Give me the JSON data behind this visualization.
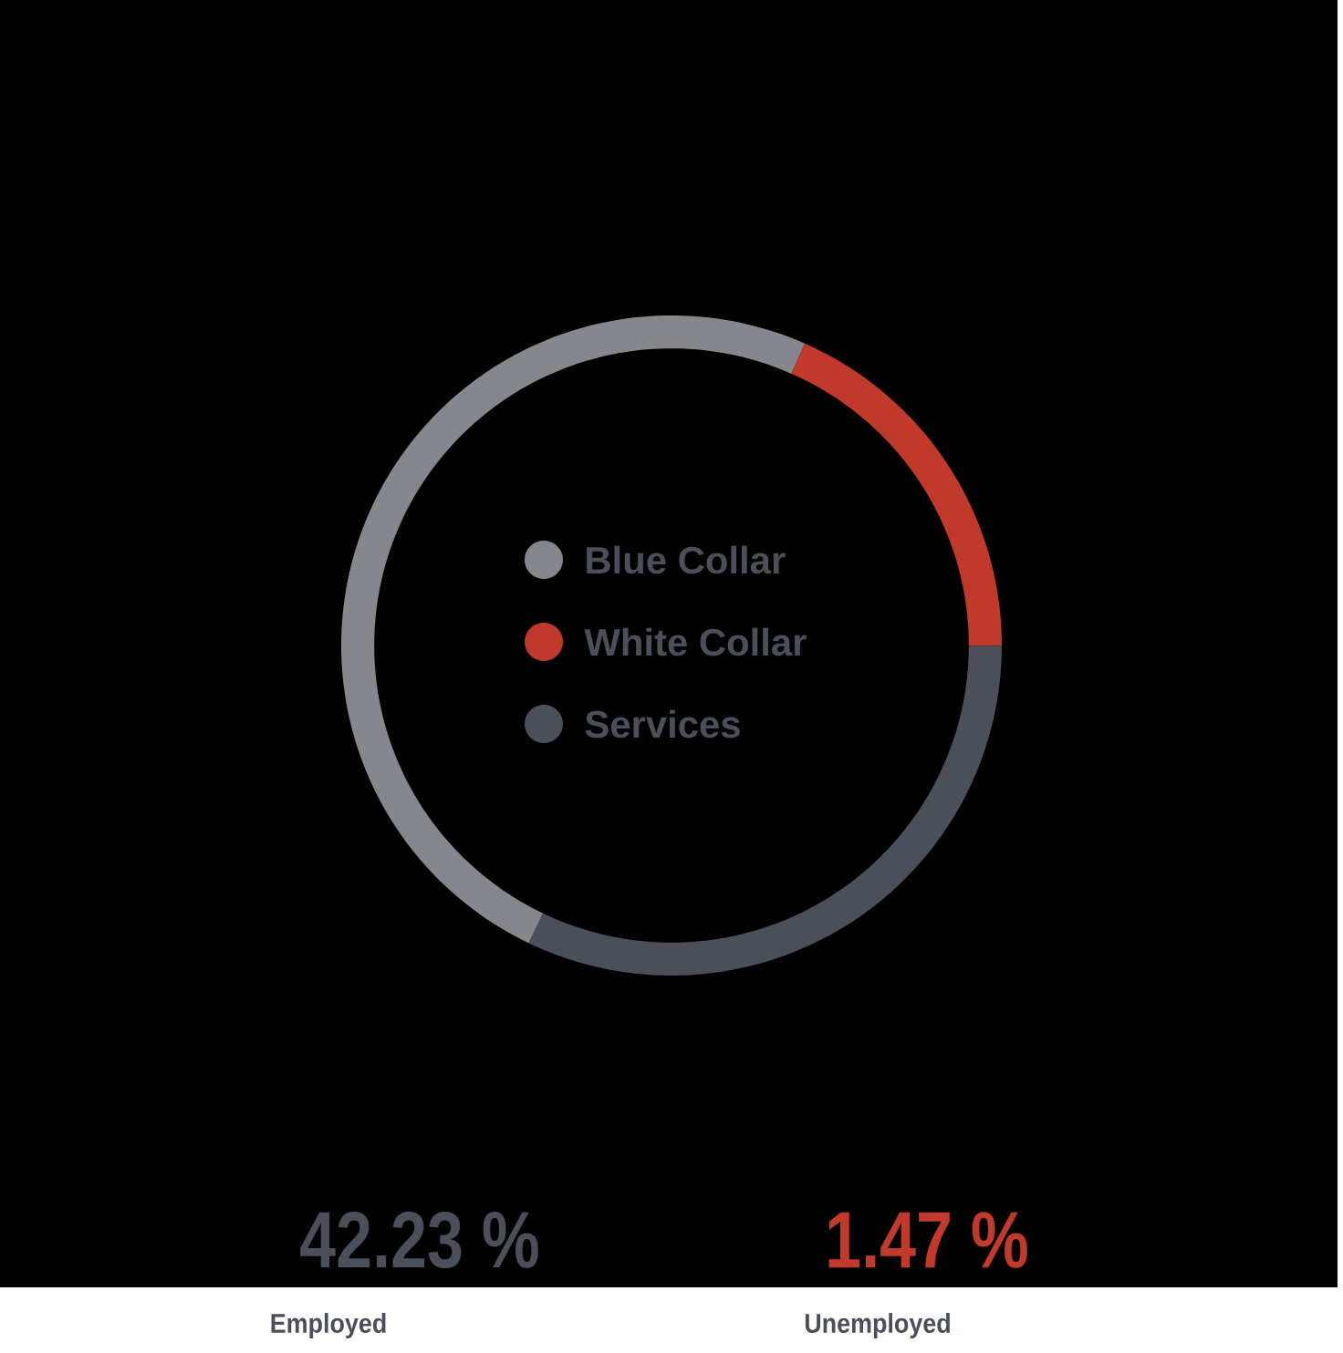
{
  "chart_data": {
    "type": "donut",
    "categories": [
      "Blue Collar",
      "White Collar",
      "Services"
    ],
    "values": [
      49.5,
      18.4,
      32.1
    ],
    "colors": [
      "#85878d",
      "#c0392b",
      "#4a4f5a"
    ],
    "legend": "center",
    "annotations": [
      "42.23 %",
      "Employed",
      "1.47 %",
      "Unemployed"
    ]
  }
}
